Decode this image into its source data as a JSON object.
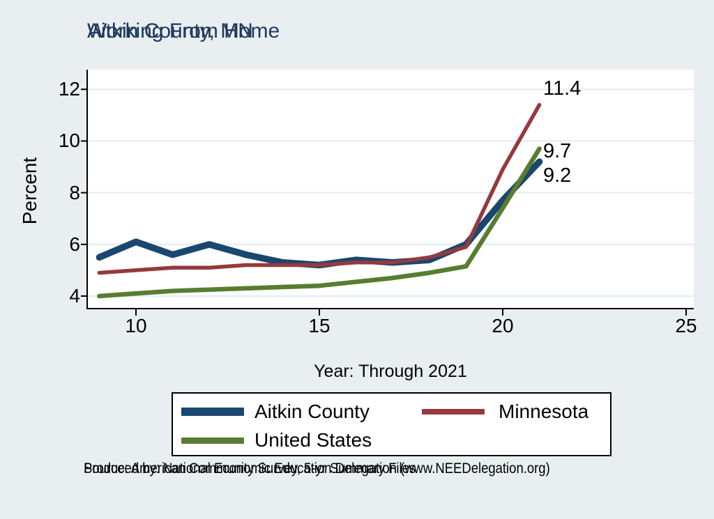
{
  "title": {
    "line1": "Working From Home",
    "line2": "Aitkin County, MN"
  },
  "axes": {
    "y_label": "Percent",
    "x_label": "Year: Through 2021",
    "y_ticks": [
      4,
      6,
      8,
      10,
      12
    ],
    "x_ticks": [
      10,
      15,
      20,
      25
    ],
    "x_range": [
      8.7,
      25.2
    ],
    "y_range": [
      3.5,
      12.8
    ],
    "grid": "horizontal-only"
  },
  "chart_data": {
    "type": "line",
    "x": [
      9,
      10,
      11,
      12,
      13,
      14,
      15,
      16,
      17,
      18,
      19,
      20,
      21
    ],
    "series": [
      {
        "name": "Aitkin County",
        "color": "#1a476f",
        "values": [
          5.5,
          6.1,
          5.6,
          6.0,
          5.6,
          5.3,
          5.2,
          5.4,
          5.3,
          5.4,
          6.0,
          7.7,
          9.2
        ],
        "end_label": "9.2"
      },
      {
        "name": "Minnesota",
        "color": "#943a3e",
        "values": [
          4.9,
          5.0,
          5.1,
          5.1,
          5.2,
          5.2,
          5.2,
          5.3,
          5.3,
          5.5,
          5.9,
          8.9,
          11.4
        ],
        "end_label": "11.4"
      },
      {
        "name": "United States",
        "color": "#587c30",
        "values": [
          4.0,
          4.1,
          4.2,
          4.25,
          4.3,
          4.35,
          4.4,
          4.55,
          4.7,
          4.9,
          5.15,
          7.4,
          9.7
        ],
        "end_label": "9.7"
      }
    ],
    "title": "Working From Home — Aitkin County, MN",
    "xlabel": "Year: Through 2021",
    "ylabel": "Percent",
    "legend_position": "bottom",
    "legend_order": [
      "Aitkin County",
      "Minnesota",
      "United States"
    ]
  },
  "colors": {
    "background": "#e9eff1",
    "plot_background": "#ffffff",
    "gridline": "#e2ecf3",
    "axis": "#000000",
    "title_text": "#20395e",
    "aitkin_county": "#1a476f",
    "minnesota": "#943a3e",
    "united_states": "#587c30"
  },
  "footer": {
    "line1": "Source: American Community Survey, 5-yr Summary Files",
    "line2": "Produced by: National Economic Education Delegation (www.NEEDelegation.org)"
  }
}
